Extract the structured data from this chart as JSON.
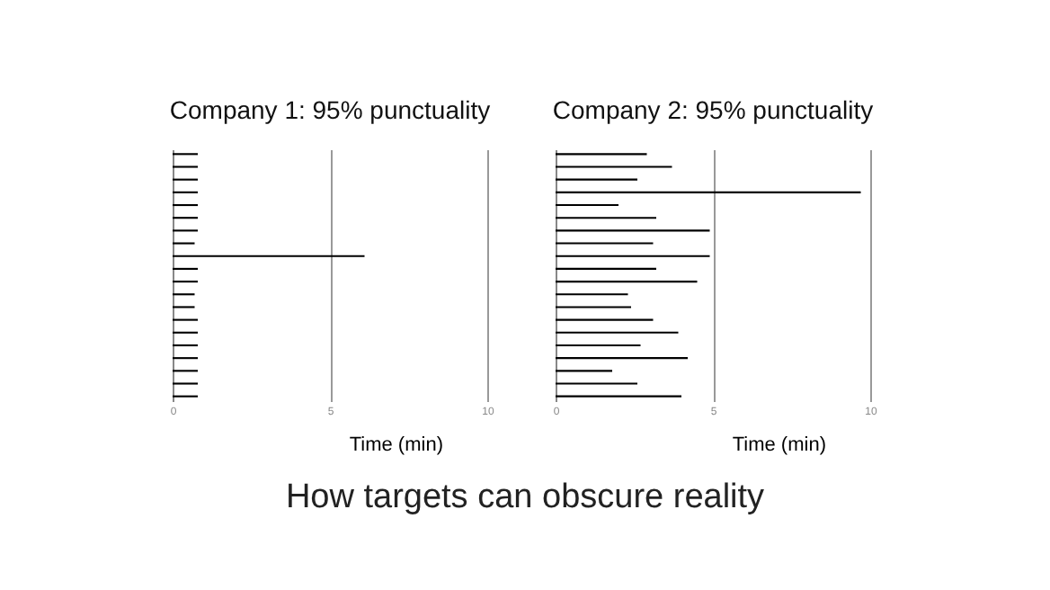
{
  "chart_data": [
    {
      "type": "bar",
      "orientation": "horizontal",
      "title": "Company 1: 95% punctuality",
      "xlabel": "Time (min)",
      "categories": [
        null,
        null,
        null,
        null,
        null,
        null,
        null,
        null,
        null,
        null,
        null,
        null,
        null,
        null,
        null,
        null,
        null,
        null,
        null,
        null
      ],
      "series": [
        {
          "color": "#000000",
          "values": [
            0.8,
            0.8,
            0.8,
            0.8,
            0.8,
            0.8,
            0.8,
            0.7,
            6.1,
            0.8,
            0.8,
            0.7,
            0.7,
            0.8,
            0.8,
            0.8,
            0.8,
            0.8,
            0.8,
            0.8
          ]
        }
      ],
      "xlim": [
        0,
        10
      ],
      "xticks": [
        0,
        5,
        10
      ],
      "grid": "x",
      "tick_labels": "x",
      "annotations": [
        "How targets can obscure reality"
      ]
    },
    {
      "type": "bar",
      "orientation": "horizontal",
      "title": "Company 2: 95% punctuality",
      "xlabel": "Time (min)",
      "categories": [
        null,
        null,
        null,
        null,
        null,
        null,
        null,
        null,
        null,
        null,
        null,
        null,
        null,
        null,
        null,
        null,
        null,
        null,
        null,
        null
      ],
      "series": [
        {
          "color": "#000000",
          "values": [
            2.9,
            3.7,
            2.6,
            9.7,
            2.0,
            3.2,
            4.9,
            3.1,
            4.9,
            3.2,
            4.5,
            2.3,
            2.4,
            3.1,
            3.9,
            2.7,
            4.2,
            1.8,
            2.6,
            4.0
          ]
        }
      ],
      "xlim": [
        0,
        10
      ],
      "xticks": [
        0,
        5,
        10
      ],
      "grid": "x",
      "tick_labels": "x"
    }
  ]
}
